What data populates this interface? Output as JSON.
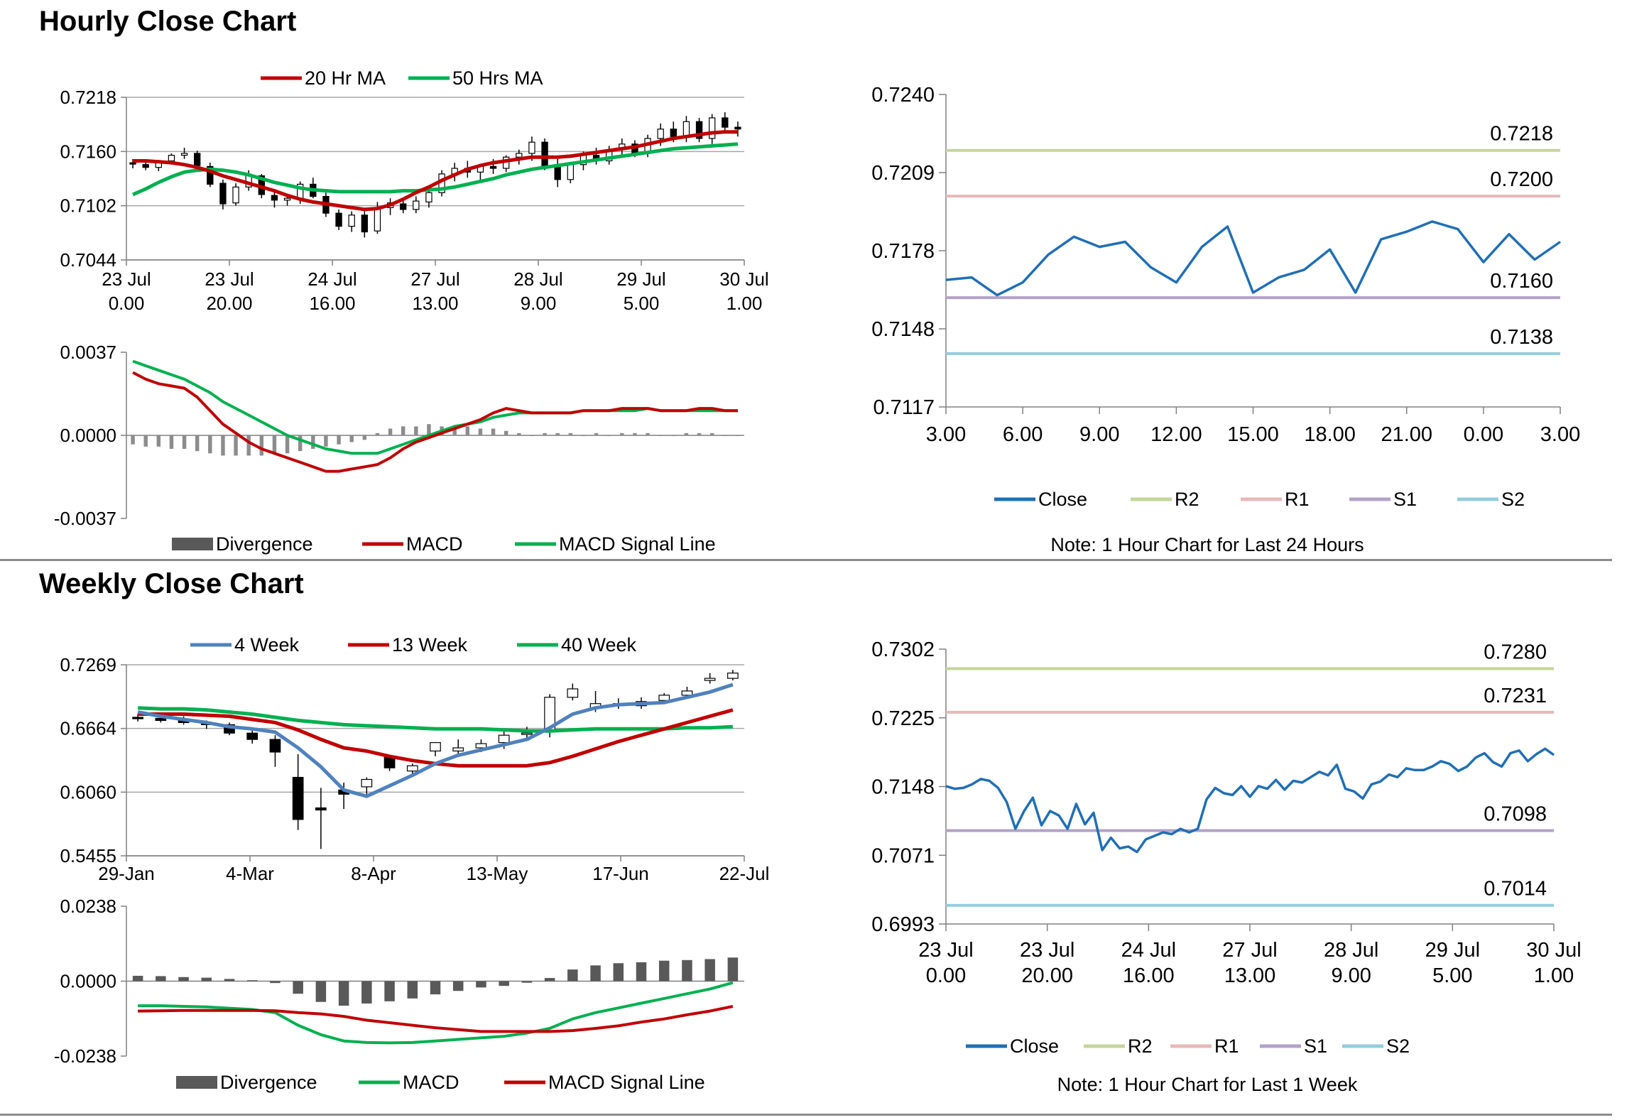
{
  "sections": {
    "hourly_title": "Hourly Close Chart",
    "weekly_title": "Weekly Close Chart"
  },
  "notes": {
    "hourly": "Note: 1 Hour Chart for Last 24 Hours",
    "weekly": "Note: 1 Hour Chart for Last 1 Week"
  },
  "colors": {
    "red": "#c00000",
    "green": "#00b050",
    "blue": "#4f81bd",
    "close_blue": "#1f6fb5",
    "r2": "#c3d69b",
    "r1": "#e6b9b8",
    "s1": "#b3a2c7",
    "s2": "#93cddd",
    "grid": "#a6a6a6",
    "divergence": "#595959"
  },
  "chart_data": [
    {
      "id": "hourly_price",
      "type": "candlestick",
      "title": "",
      "legend": [
        "20 Hr MA",
        "50 Hrs MA"
      ],
      "legend_position": "top",
      "ylim": [
        0.7044,
        0.7218
      ],
      "yticks": [
        "0.7218",
        "0.7160",
        "0.7102",
        "0.7044"
      ],
      "xticks": [
        [
          "23 Jul",
          "0.00"
        ],
        [
          "23 Jul",
          "20.00"
        ],
        [
          "24 Jul",
          "16.00"
        ],
        [
          "27 Jul",
          "13.00"
        ],
        [
          "28 Jul",
          "9.00"
        ],
        [
          "29 Jul",
          "5.00"
        ],
        [
          "30 Jul",
          "1.00"
        ]
      ],
      "grid": true,
      "ohlc": [
        [
          0.7148,
          0.7152,
          0.7142,
          0.7147
        ],
        [
          0.7146,
          0.715,
          0.714,
          0.7143
        ],
        [
          0.7143,
          0.7151,
          0.7139,
          0.7149
        ],
        [
          0.715,
          0.7158,
          0.7146,
          0.7156
        ],
        [
          0.7156,
          0.7164,
          0.7152,
          0.7158
        ],
        [
          0.7158,
          0.7161,
          0.7142,
          0.7145
        ],
        [
          0.7144,
          0.7148,
          0.7122,
          0.7125
        ],
        [
          0.7126,
          0.713,
          0.7098,
          0.7104
        ],
        [
          0.7105,
          0.7126,
          0.7102,
          0.7122
        ],
        [
          0.7122,
          0.714,
          0.7118,
          0.7135
        ],
        [
          0.7134,
          0.7136,
          0.711,
          0.7114
        ],
        [
          0.7113,
          0.712,
          0.71,
          0.7108
        ],
        [
          0.7108,
          0.7114,
          0.7102,
          0.711
        ],
        [
          0.711,
          0.7128,
          0.7104,
          0.7125
        ],
        [
          0.7125,
          0.7132,
          0.711,
          0.7112
        ],
        [
          0.7112,
          0.7116,
          0.709,
          0.7094
        ],
        [
          0.7094,
          0.7098,
          0.7076,
          0.708
        ],
        [
          0.708,
          0.7096,
          0.7074,
          0.7092
        ],
        [
          0.7092,
          0.7096,
          0.7068,
          0.7074
        ],
        [
          0.7075,
          0.7106,
          0.7072,
          0.71
        ],
        [
          0.71,
          0.711,
          0.7092,
          0.7105
        ],
        [
          0.7104,
          0.7108,
          0.7094,
          0.7098
        ],
        [
          0.7098,
          0.7112,
          0.7094,
          0.7107
        ],
        [
          0.7106,
          0.712,
          0.71,
          0.7116
        ],
        [
          0.7116,
          0.714,
          0.7112,
          0.7136
        ],
        [
          0.7136,
          0.7148,
          0.7128,
          0.7142
        ],
        [
          0.7142,
          0.715,
          0.7132,
          0.7138
        ],
        [
          0.7138,
          0.7146,
          0.7128,
          0.7144
        ],
        [
          0.7144,
          0.7152,
          0.7136,
          0.7142
        ],
        [
          0.7142,
          0.7156,
          0.7138,
          0.7154
        ],
        [
          0.7154,
          0.7162,
          0.7146,
          0.7158
        ],
        [
          0.7158,
          0.7176,
          0.715,
          0.717
        ],
        [
          0.717,
          0.7174,
          0.714,
          0.7144
        ],
        [
          0.7144,
          0.7152,
          0.7122,
          0.713
        ],
        [
          0.713,
          0.7148,
          0.7126,
          0.7146
        ],
        [
          0.7146,
          0.716,
          0.714,
          0.7156
        ],
        [
          0.7156,
          0.7164,
          0.7146,
          0.715
        ],
        [
          0.715,
          0.7166,
          0.7146,
          0.7162
        ],
        [
          0.7162,
          0.7174,
          0.7154,
          0.7168
        ],
        [
          0.7168,
          0.7172,
          0.7154,
          0.7158
        ],
        [
          0.7158,
          0.7178,
          0.7154,
          0.7174
        ],
        [
          0.7174,
          0.719,
          0.7166,
          0.7184
        ],
        [
          0.7184,
          0.7192,
          0.717,
          0.7176
        ],
        [
          0.7176,
          0.7198,
          0.717,
          0.7192
        ],
        [
          0.7192,
          0.7196,
          0.717,
          0.7174
        ],
        [
          0.7174,
          0.72,
          0.7168,
          0.7196
        ],
        [
          0.7196,
          0.7202,
          0.7182,
          0.7186
        ],
        [
          0.7186,
          0.7192,
          0.7176,
          0.7184
        ]
      ],
      "ma20": [
        0.715,
        0.715,
        0.7149,
        0.7148,
        0.7146,
        0.7143,
        0.7139,
        0.7134,
        0.713,
        0.7126,
        0.7122,
        0.7118,
        0.7113,
        0.7109,
        0.7106,
        0.7104,
        0.7102,
        0.71,
        0.7098,
        0.7099,
        0.7103,
        0.7109,
        0.7116,
        0.7122,
        0.7129,
        0.7135,
        0.7141,
        0.7145,
        0.7148,
        0.715,
        0.7152,
        0.7154,
        0.7154,
        0.7154,
        0.7155,
        0.7157,
        0.7159,
        0.7161,
        0.7163,
        0.7165,
        0.7168,
        0.7171,
        0.7174,
        0.7176,
        0.7178,
        0.718,
        0.7181,
        0.7181
      ],
      "ma50": [
        0.7114,
        0.712,
        0.7127,
        0.7133,
        0.7138,
        0.714,
        0.7141,
        0.714,
        0.7138,
        0.7135,
        0.7131,
        0.7127,
        0.7124,
        0.7121,
        0.7119,
        0.7118,
        0.7117,
        0.7117,
        0.7117,
        0.7117,
        0.7117,
        0.7118,
        0.7118,
        0.7119,
        0.712,
        0.7122,
        0.7125,
        0.7128,
        0.7131,
        0.7135,
        0.7138,
        0.7141,
        0.7143,
        0.7145,
        0.7147,
        0.7149,
        0.7151,
        0.7153,
        0.7155,
        0.7157,
        0.7159,
        0.7161,
        0.7163,
        0.7164,
        0.7165,
        0.7166,
        0.7167,
        0.7168
      ]
    },
    {
      "id": "hourly_macd",
      "type": "macd",
      "title": "",
      "legend": [
        "Divergence",
        "MACD",
        "MACD Signal Line"
      ],
      "legend_position": "bottom",
      "ylim": [
        -0.0037,
        0.0037
      ],
      "yticks": [
        "0.0037",
        "0.0000",
        "-0.0037"
      ],
      "macd": [
        0.0028,
        0.0025,
        0.0023,
        0.0022,
        0.0021,
        0.0017,
        0.0011,
        0.0005,
        0.0001,
        -0.0003,
        -0.0006,
        -0.0008,
        -0.001,
        -0.0012,
        -0.0014,
        -0.0016,
        -0.0016,
        -0.0015,
        -0.0014,
        -0.0013,
        -0.001,
        -0.0006,
        -0.0003,
        -0.0001,
        0.0001,
        0.0003,
        0.0005,
        0.0007,
        0.001,
        0.0012,
        0.0011,
        0.001,
        0.001,
        0.001,
        0.001,
        0.0011,
        0.0011,
        0.0011,
        0.0012,
        0.0012,
        0.0012,
        0.0011,
        0.0011,
        0.0011,
        0.0012,
        0.0012,
        0.0011,
        0.0011
      ],
      "signal": [
        0.0033,
        0.0031,
        0.0029,
        0.0027,
        0.0025,
        0.0022,
        0.0019,
        0.0015,
        0.0012,
        0.0009,
        0.0006,
        0.0003,
        0.0,
        -0.0002,
        -0.0004,
        -0.0006,
        -0.0007,
        -0.0008,
        -0.0008,
        -0.0008,
        -0.0006,
        -0.0004,
        -0.0002,
        0.0,
        0.0002,
        0.0004,
        0.0005,
        0.0006,
        0.0008,
        0.0009,
        0.001,
        0.001,
        0.001,
        0.001,
        0.001,
        0.0011,
        0.0011,
        0.0011,
        0.0011,
        0.0011,
        0.0012,
        0.0011,
        0.0011,
        0.0011,
        0.0011,
        0.0011,
        0.0011,
        0.0011
      ],
      "divergence": [
        -0.0004,
        -0.0005,
        -0.0005,
        -0.0006,
        -0.0006,
        -0.0007,
        -0.0008,
        -0.0009,
        -0.0009,
        -0.0009,
        -0.0009,
        -0.0008,
        -0.0008,
        -0.0007,
        -0.0006,
        -0.0005,
        -0.0004,
        -0.0003,
        -0.0002,
        0.0001,
        0.0003,
        0.0004,
        0.0004,
        0.0005,
        0.0004,
        0.0004,
        0.0004,
        0.0003,
        0.0003,
        0.0002,
        0.0001,
        0.0,
        0.0001,
        0.0001,
        0.0001,
        0.0,
        0.0001,
        0.0,
        0.0001,
        0.0001,
        0.0001,
        0.0,
        0.0,
        0.0001,
        0.0001,
        0.0001,
        0.0,
        0.0
      ]
    },
    {
      "id": "hourly_pivot",
      "type": "line",
      "title": "",
      "legend": [
        "Close",
        "R2",
        "R1",
        "S1",
        "S2"
      ],
      "legend_position": "bottom",
      "ylim": [
        0.7117,
        0.724
      ],
      "yticks": [
        "0.7240",
        "0.7209",
        "0.7178",
        "0.7148",
        "0.7117"
      ],
      "xticks": [
        "3.00",
        "6.00",
        "9.00",
        "12.00",
        "15.00",
        "18.00",
        "21.00",
        "0.00",
        "3.00"
      ],
      "close": [
        0.7167,
        0.7168,
        0.7161,
        0.7166,
        0.7177,
        0.7184,
        0.718,
        0.7182,
        0.7172,
        0.7166,
        0.718,
        0.7188,
        0.7162,
        0.7168,
        0.7171,
        0.7179,
        0.7162,
        0.7183,
        0.7186,
        0.719,
        0.7187,
        0.7174,
        0.7185,
        0.7175,
        0.7182
      ],
      "levels": {
        "R2": 0.7218,
        "R1": 0.72,
        "S1": 0.716,
        "S2": 0.7138
      },
      "level_labels": {
        "R2": "0.7218",
        "R1": "0.7200",
        "S1": "0.7160",
        "S2": "0.7138"
      }
    },
    {
      "id": "weekly_price",
      "type": "candlestick",
      "title": "",
      "legend": [
        "4 Week",
        "13 Week",
        "40 Week"
      ],
      "legend_position": "top",
      "ylim": [
        0.5455,
        0.7269
      ],
      "yticks": [
        "0.7269",
        "0.6664",
        "0.6060",
        "0.5455"
      ],
      "xticks": [
        "29-Jan",
        "4-Mar",
        "8-Apr",
        "13-May",
        "17-Jun",
        "22-Jul"
      ],
      "grid": true,
      "ohlc": [
        [
          0.677,
          0.68,
          0.673,
          0.676
        ],
        [
          0.676,
          0.679,
          0.672,
          0.674
        ],
        [
          0.674,
          0.678,
          0.67,
          0.672
        ],
        [
          0.672,
          0.674,
          0.666,
          0.67
        ],
        [
          0.67,
          0.672,
          0.66,
          0.662
        ],
        [
          0.662,
          0.666,
          0.652,
          0.656
        ],
        [
          0.656,
          0.66,
          0.63,
          0.644
        ],
        [
          0.62,
          0.642,
          0.57,
          0.58
        ],
        [
          0.591,
          0.61,
          0.552,
          0.589
        ],
        [
          0.608,
          0.615,
          0.59,
          0.604
        ],
        [
          0.611,
          0.62,
          0.603,
          0.618
        ],
        [
          0.639,
          0.64,
          0.626,
          0.629
        ],
        [
          0.626,
          0.633,
          0.622,
          0.631
        ],
        [
          0.645,
          0.653,
          0.64,
          0.653
        ],
        [
          0.645,
          0.656,
          0.64,
          0.648
        ],
        [
          0.648,
          0.656,
          0.644,
          0.652
        ],
        [
          0.653,
          0.664,
          0.647,
          0.66
        ],
        [
          0.662,
          0.668,
          0.656,
          0.662
        ],
        [
          0.664,
          0.699,
          0.658,
          0.696
        ],
        [
          0.696,
          0.709,
          0.693,
          0.704
        ],
        [
          0.686,
          0.702,
          0.682,
          0.69
        ],
        [
          0.69,
          0.695,
          0.685,
          0.688
        ],
        [
          0.688,
          0.696,
          0.685,
          0.692
        ],
        [
          0.693,
          0.7,
          0.69,
          0.698
        ],
        [
          0.698,
          0.706,
          0.696,
          0.702
        ],
        [
          0.712,
          0.719,
          0.709,
          0.714
        ],
        [
          0.714,
          0.722,
          0.712,
          0.719
        ]
      ],
      "ma4": [
        0.682,
        0.678,
        0.675,
        0.672,
        0.668,
        0.666,
        0.663,
        0.648,
        0.63,
        0.608,
        0.602,
        0.612,
        0.622,
        0.633,
        0.641,
        0.646,
        0.651,
        0.656,
        0.667,
        0.68,
        0.686,
        0.689,
        0.69,
        0.691,
        0.696,
        0.701,
        0.708
      ],
      "ma13": [
        0.68,
        0.68,
        0.68,
        0.679,
        0.678,
        0.675,
        0.672,
        0.665,
        0.656,
        0.648,
        0.645,
        0.64,
        0.636,
        0.633,
        0.631,
        0.631,
        0.631,
        0.631,
        0.634,
        0.64,
        0.647,
        0.654,
        0.66,
        0.666,
        0.672,
        0.678,
        0.684
      ],
      "ma40": [
        0.686,
        0.685,
        0.685,
        0.684,
        0.682,
        0.68,
        0.677,
        0.674,
        0.672,
        0.67,
        0.669,
        0.668,
        0.667,
        0.666,
        0.666,
        0.666,
        0.665,
        0.664,
        0.664,
        0.665,
        0.666,
        0.666,
        0.666,
        0.666,
        0.667,
        0.667,
        0.668
      ]
    },
    {
      "id": "weekly_macd",
      "type": "macd",
      "title": "",
      "legend": [
        "Divergence",
        "MACD",
        "MACD Signal Line"
      ],
      "legend_position": "bottom",
      "ylim": [
        -0.0238,
        0.0238
      ],
      "yticks": [
        "0.0238",
        "0.0000",
        "-0.0238"
      ],
      "macd": [
        -0.0078,
        -0.0078,
        -0.008,
        -0.0082,
        -0.0086,
        -0.009,
        -0.01,
        -0.014,
        -0.017,
        -0.019,
        -0.0195,
        -0.0196,
        -0.0195,
        -0.019,
        -0.0185,
        -0.018,
        -0.0175,
        -0.0165,
        -0.015,
        -0.012,
        -0.01,
        -0.0085,
        -0.007,
        -0.0055,
        -0.004,
        -0.0025,
        -0.0005
      ],
      "signal": [
        -0.0095,
        -0.0094,
        -0.0093,
        -0.0093,
        -0.0093,
        -0.0093,
        -0.0094,
        -0.01,
        -0.0104,
        -0.0112,
        -0.0124,
        -0.0132,
        -0.014,
        -0.0148,
        -0.0154,
        -0.016,
        -0.016,
        -0.016,
        -0.016,
        -0.0157,
        -0.015,
        -0.0142,
        -0.013,
        -0.012,
        -0.0107,
        -0.0095,
        -0.008
      ],
      "divergence": [
        0.0017,
        0.0016,
        0.0013,
        0.0011,
        0.0007,
        0.0003,
        -0.0006,
        -0.004,
        -0.0066,
        -0.0078,
        -0.0071,
        -0.0064,
        -0.0055,
        -0.0042,
        -0.0031,
        -0.002,
        -0.0015,
        -0.0005,
        0.001,
        0.0037,
        0.005,
        0.0057,
        0.006,
        0.0065,
        0.0067,
        0.007,
        0.0075
      ]
    },
    {
      "id": "weekly_pivot",
      "type": "line",
      "title": "",
      "legend": [
        "Close",
        "R2",
        "R1",
        "S1",
        "S2"
      ],
      "legend_position": "bottom",
      "ylim": [
        0.6993,
        0.7302
      ],
      "yticks": [
        "0.7302",
        "0.7225",
        "0.7148",
        "0.7071",
        "0.6993"
      ],
      "xticks": [
        [
          "23 Jul",
          "0.00"
        ],
        [
          "23 Jul",
          "20.00"
        ],
        [
          "24 Jul",
          "16.00"
        ],
        [
          "27 Jul",
          "13.00"
        ],
        [
          "28 Jul",
          "9.00"
        ],
        [
          "29 Jul",
          "5.00"
        ],
        [
          "30 Jul",
          "1.00"
        ]
      ],
      "close": [
        0.7148,
        0.7145,
        0.7146,
        0.715,
        0.7156,
        0.7154,
        0.7146,
        0.713,
        0.71,
        0.712,
        0.7135,
        0.7104,
        0.712,
        0.7115,
        0.71,
        0.7128,
        0.7105,
        0.7118,
        0.7076,
        0.709,
        0.7078,
        0.708,
        0.7074,
        0.7088,
        0.7092,
        0.7096,
        0.7094,
        0.71,
        0.7096,
        0.71,
        0.7133,
        0.7146,
        0.714,
        0.7138,
        0.7148,
        0.7136,
        0.7148,
        0.7145,
        0.7155,
        0.7144,
        0.7154,
        0.7152,
        0.7158,
        0.7164,
        0.716,
        0.7172,
        0.7145,
        0.7142,
        0.7134,
        0.715,
        0.7153,
        0.7161,
        0.7158,
        0.7168,
        0.7166,
        0.7166,
        0.717,
        0.7176,
        0.7173,
        0.7165,
        0.717,
        0.718,
        0.7185,
        0.7175,
        0.717,
        0.7185,
        0.7188,
        0.7176,
        0.7184,
        0.719,
        0.7183
      ],
      "levels": {
        "R2": 0.728,
        "R1": 0.7231,
        "S1": 0.7098,
        "S2": 0.7014
      },
      "level_labels": {
        "R2": "0.7280",
        "R1": "0.7231",
        "S1": "0.7098",
        "S2": "0.7014"
      }
    }
  ]
}
